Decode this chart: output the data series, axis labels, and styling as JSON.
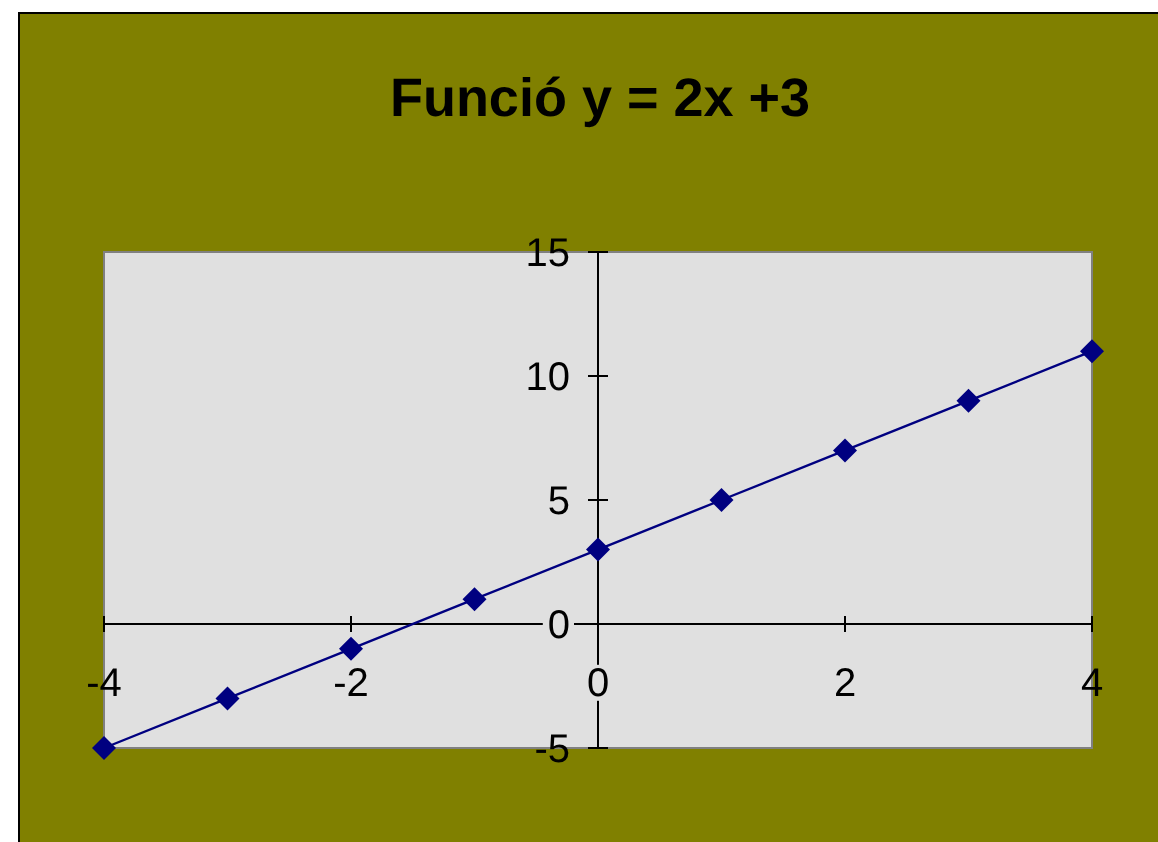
{
  "chart_data": {
    "type": "line",
    "title": "Funció y = 2x +3",
    "x": [
      -4,
      -3,
      -2,
      -1,
      0,
      1,
      2,
      3,
      4
    ],
    "series": [
      {
        "color": "#000080",
        "values": [
          -5,
          -3,
          -1,
          1,
          3,
          5,
          7,
          9,
          11
        ]
      }
    ],
    "xlim": [
      -4,
      4
    ],
    "ylim": [
      -5,
      15
    ],
    "xticks": [
      -4,
      -2,
      0,
      2,
      4
    ],
    "yticks": [
      -5,
      0,
      5,
      10,
      15
    ],
    "marker": "diamond"
  }
}
